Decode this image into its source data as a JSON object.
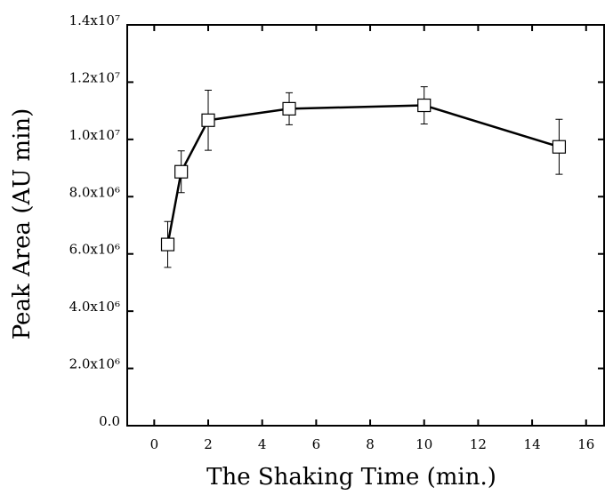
{
  "chart_data": {
    "type": "line",
    "x_label": "The Shaking Time (min.)",
    "y_label": "Peak Area (AU min)",
    "x": [
      0.5,
      1,
      2,
      5,
      10,
      15
    ],
    "values": [
      6330000,
      8870000,
      10670000,
      11070000,
      11190000,
      9740000
    ],
    "errors": [
      800000,
      730000,
      1050000,
      560000,
      650000,
      960000
    ],
    "color": "#000000",
    "xlim": [
      -1,
      16.7
    ],
    "ylim": [
      0,
      14000000
    ],
    "xticks": [
      0,
      2,
      4,
      6,
      8,
      10,
      12,
      14,
      16
    ],
    "yticks": [
      {
        "value": 0,
        "label": "0.0"
      },
      {
        "value": 2000000,
        "label": "2.0x10⁶"
      },
      {
        "value": 4000000,
        "label": "4.0x10⁶"
      },
      {
        "value": 6000000,
        "label": "6.0x10⁶"
      },
      {
        "value": 8000000,
        "label": "8.0x10⁶"
      },
      {
        "value": 10000000,
        "label": "1.0x10⁷"
      },
      {
        "value": 12000000,
        "label": "1.2x10⁷"
      },
      {
        "value": 14000000,
        "label": "1.4x10⁷"
      }
    ]
  }
}
